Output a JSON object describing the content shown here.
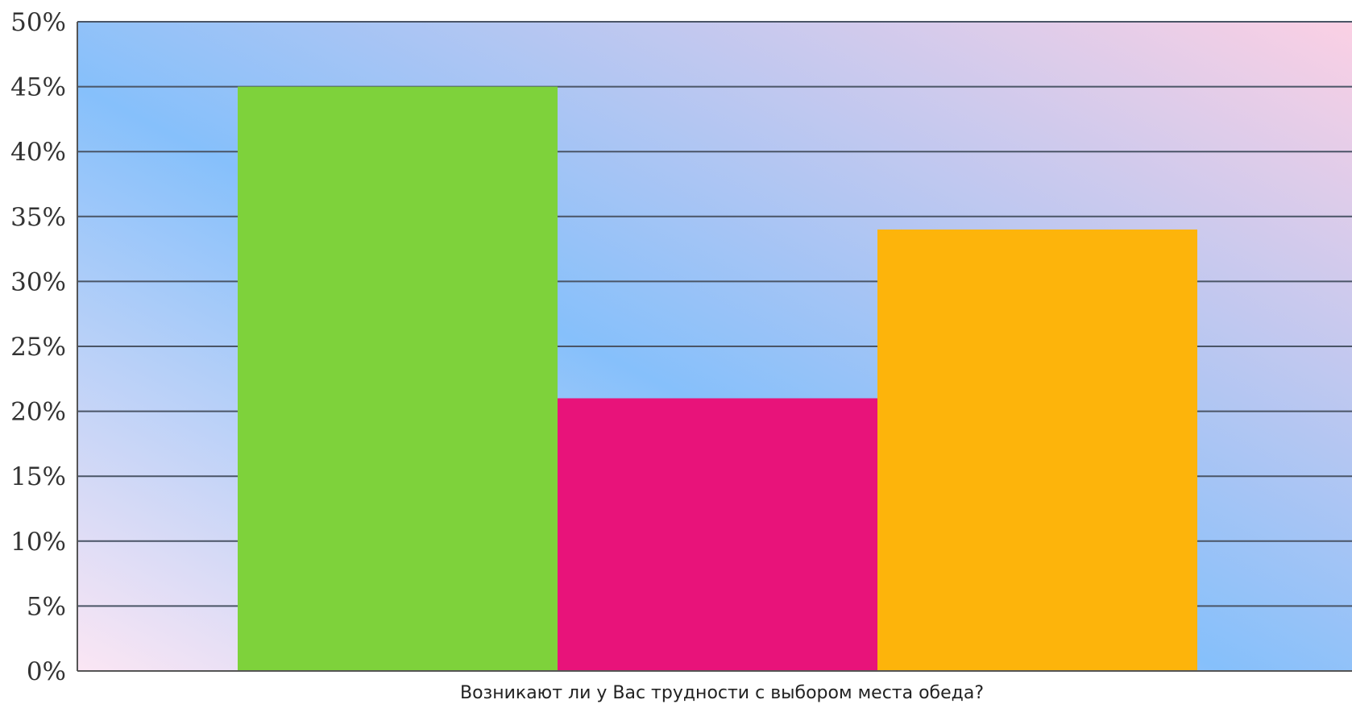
{
  "chart_data": {
    "type": "bar",
    "xlabel": "Возникают ли у Вас трудности с выбором места обеда?",
    "ylabel": "",
    "ylim": [
      0,
      50
    ],
    "y_ticks": [
      0,
      5,
      10,
      15,
      20,
      25,
      30,
      35,
      40,
      45,
      50
    ],
    "y_tick_suffix": "%",
    "grid": true,
    "legend": "none",
    "series": [
      {
        "value": 45,
        "color": "#7ed23b"
      },
      {
        "value": 21,
        "color": "#e8137a"
      },
      {
        "value": 34,
        "color": "#fdb40b"
      }
    ]
  }
}
